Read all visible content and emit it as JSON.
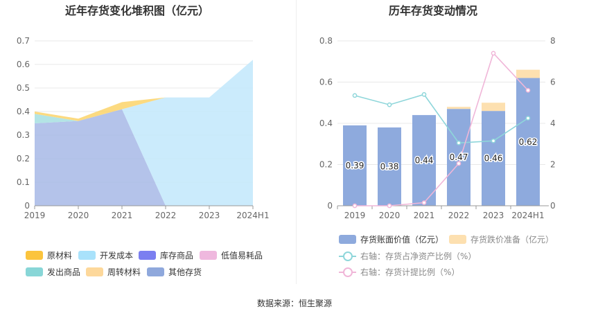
{
  "left_title": "近年存货变化堆积图（亿元）",
  "right_title": "历年存货变动情况",
  "source": "数据来源：恒生聚源",
  "chart_data": [
    {
      "type": "area",
      "title": "近年存货变化堆积图（亿元）",
      "categories": [
        "2019",
        "2020",
        "2021",
        "2022",
        "2023",
        "2024H1"
      ],
      "ylim": [
        0,
        0.7
      ],
      "yticks": [
        "0",
        "0.1",
        "0.2",
        "0.3",
        "0.4",
        "0.5",
        "0.6",
        "0.7"
      ],
      "stacked": true,
      "series": [
        {
          "name": "其他存货",
          "color": "#a7b8e6",
          "values": [
            0.35,
            0.36,
            0.41,
            0.0,
            0.0,
            0.0
          ]
        },
        {
          "name": "发出商品",
          "color": "#a6dfe0",
          "values": [
            0.04,
            0.0,
            0.0,
            0.0,
            0.0,
            0.0
          ]
        },
        {
          "name": "开发成本",
          "color": "#c2e8fb",
          "values": [
            0.0,
            0.0,
            0.0,
            0.46,
            0.46,
            0.62
          ]
        },
        {
          "name": "原材料",
          "color": "#fcd46a",
          "values": [
            0.01,
            0.01,
            0.03,
            0.0,
            0.0,
            0.0
          ]
        },
        {
          "name": "库存商品",
          "color": "#7b7ff0",
          "values": [
            0,
            0,
            0,
            0,
            0,
            0
          ]
        },
        {
          "name": "低值易耗品",
          "color": "#efb8de",
          "values": [
            0,
            0,
            0,
            0,
            0,
            0
          ]
        },
        {
          "name": "周转材料",
          "color": "#fddca6",
          "values": [
            0,
            0,
            0,
            0,
            0,
            0
          ]
        }
      ],
      "legend": [
        {
          "name": "原材料",
          "color": "#fbc43d"
        },
        {
          "name": "开发成本",
          "color": "#a9e2fb"
        },
        {
          "name": "库存商品",
          "color": "#7b7ff0"
        },
        {
          "name": "低值易耗品",
          "color": "#efb8de"
        },
        {
          "name": "发出商品",
          "color": "#88d6d7"
        },
        {
          "name": "周转材料",
          "color": "#fdd89b"
        },
        {
          "name": "其他存货",
          "color": "#8fa8dc"
        }
      ]
    },
    {
      "type": "bar",
      "title": "历年存货变动情况",
      "categories": [
        "2019",
        "2020",
        "2021",
        "2022",
        "2023",
        "2024H1"
      ],
      "ylim": [
        0,
        0.8
      ],
      "yticks": [
        "0",
        "0.2",
        "0.4",
        "0.6",
        "0.8"
      ],
      "y2lim": [
        0,
        8
      ],
      "y2ticks": [
        "0",
        "2",
        "4",
        "6",
        "8"
      ],
      "series": [
        {
          "name": "存货账面价值（亿元）",
          "kind": "bar",
          "color": "#8eaadd",
          "values": [
            0.39,
            0.38,
            0.44,
            0.47,
            0.46,
            0.62
          ],
          "labels": [
            "0.39",
            "0.38",
            "0.44",
            "0.47",
            "0.46",
            "0.62"
          ]
        },
        {
          "name": "存货跌价准备（亿元）",
          "kind": "bar-stack",
          "color": "#fde0b0",
          "values": [
            0,
            0,
            0,
            0.01,
            0.04,
            0.04
          ]
        },
        {
          "name": "右轴：存货占净资产比例（%）",
          "kind": "line",
          "axis": "right",
          "color": "#8ed6da",
          "values": [
            5.35,
            4.9,
            5.4,
            3.05,
            3.15,
            4.25
          ]
        },
        {
          "name": "右轴：存货计提比例（%）",
          "kind": "line",
          "axis": "right",
          "color": "#f0b6d8",
          "values": [
            0.0,
            0.0,
            0.15,
            2.05,
            7.4,
            5.6
          ]
        }
      ]
    }
  ]
}
